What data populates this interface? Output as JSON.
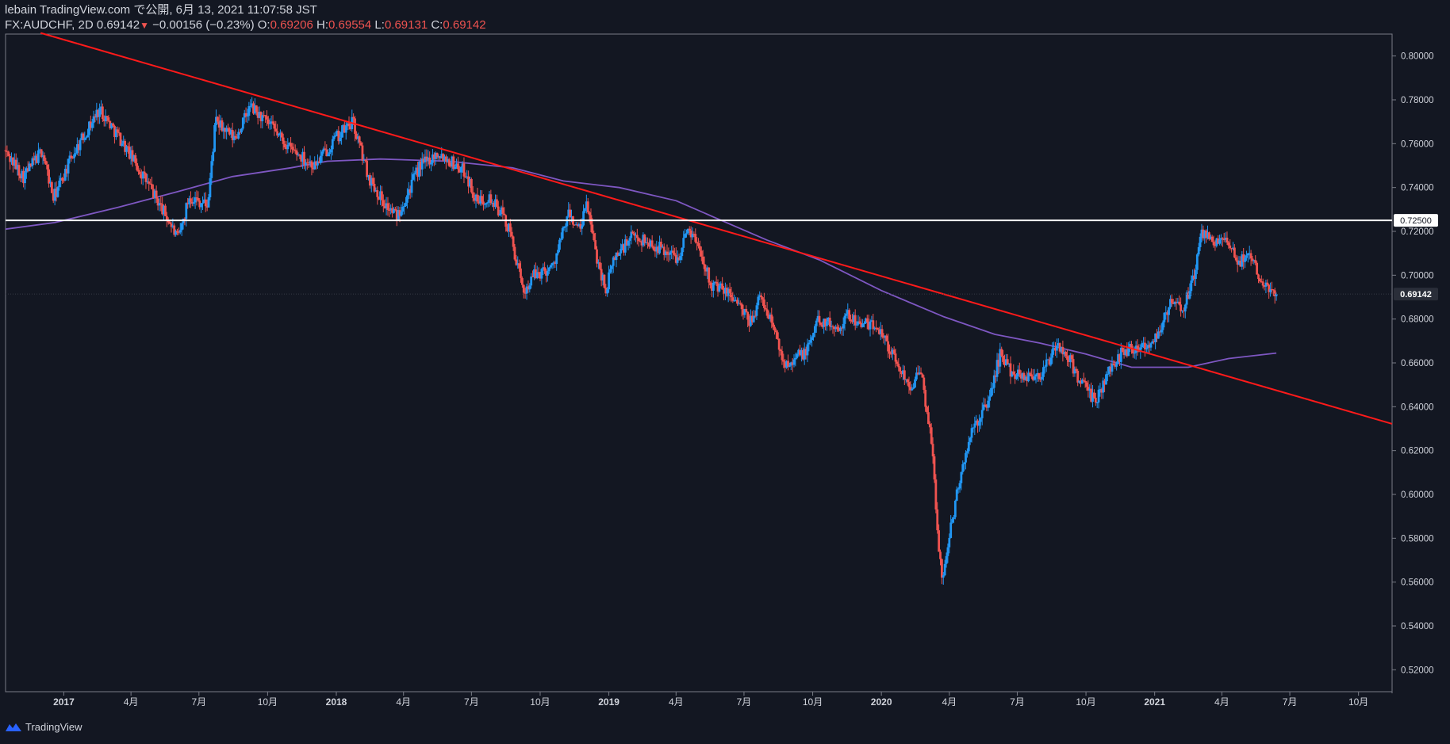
{
  "header": {
    "publish_line": "lebain TradingView.com で公開, 6月 13, 2021 11:07:58 JST",
    "symbol": "FX:AUDCHF, 2D",
    "last": "0.69142",
    "change": "−0.00156 (−0.23%)",
    "o_label": "O:",
    "o_value": "0.69206",
    "h_label": "H:",
    "h_value": "0.69554",
    "l_label": "L:",
    "l_value": "0.69131",
    "c_label": "C:",
    "c_value": "0.69142"
  },
  "footer": {
    "brand": "TradingView"
  },
  "colors": {
    "background": "#131722",
    "up": "#2196f3",
    "down": "#ef5350",
    "trendline": "#ff1a1a",
    "ma": "#7e57c2",
    "level": "#ffffff",
    "text": "#d1d4dc"
  },
  "chart_data": {
    "type": "candlestick",
    "symbol": "FX:AUDCHF",
    "timeframe": "2D",
    "ylim": [
      0.51,
      0.81
    ],
    "y_ticks": [
      0.52,
      0.54,
      0.56,
      0.58,
      0.6,
      0.62,
      0.64,
      0.66,
      0.68,
      0.7,
      0.72,
      0.74,
      0.76,
      0.78,
      0.8
    ],
    "y_tick_labels": [
      "0.52000",
      "0.54000",
      "0.56000",
      "0.58000",
      "0.60000",
      "0.62000",
      "0.64000",
      "0.66000",
      "0.68000",
      "0.70000",
      "0.72000",
      "0.74000",
      "0.76000",
      "0.78000",
      "0.80000"
    ],
    "xlim": [
      "2016-10-15",
      "2021-11-15"
    ],
    "x_ticks": [
      "2017-01-01",
      "2017-04-01",
      "2017-07-01",
      "2017-10-01",
      "2018-01-01",
      "2018-04-01",
      "2018-07-01",
      "2018-10-01",
      "2019-01-01",
      "2019-04-01",
      "2019-07-01",
      "2019-10-01",
      "2020-01-01",
      "2020-04-01",
      "2020-07-01",
      "2020-10-01",
      "2021-01-01",
      "2021-04-01",
      "2021-07-01",
      "2021-10-01"
    ],
    "x_tick_labels": [
      "2017",
      "4月",
      "7月",
      "10月",
      "2018",
      "4月",
      "7月",
      "10月",
      "2019",
      "4月",
      "7月",
      "10月",
      "2020",
      "4月",
      "7月",
      "10月",
      "2021",
      "4月",
      "7月",
      "10月"
    ],
    "price_path": [
      {
        "date": "2016-10-15",
        "close": 0.757
      },
      {
        "date": "2016-11-10",
        "close": 0.745
      },
      {
        "date": "2016-12-05",
        "close": 0.757
      },
      {
        "date": "2016-12-20",
        "close": 0.735
      },
      {
        "date": "2017-01-15",
        "close": 0.755
      },
      {
        "date": "2017-02-20",
        "close": 0.776
      },
      {
        "date": "2017-03-20",
        "close": 0.762
      },
      {
        "date": "2017-04-25",
        "close": 0.742
      },
      {
        "date": "2017-05-25",
        "close": 0.724
      },
      {
        "date": "2017-06-05",
        "close": 0.716
      },
      {
        "date": "2017-06-20",
        "close": 0.736
      },
      {
        "date": "2017-07-15",
        "close": 0.732
      },
      {
        "date": "2017-07-25",
        "close": 0.77
      },
      {
        "date": "2017-08-20",
        "close": 0.762
      },
      {
        "date": "2017-09-10",
        "close": 0.777
      },
      {
        "date": "2017-10-15",
        "close": 0.765
      },
      {
        "date": "2017-11-01",
        "close": 0.758
      },
      {
        "date": "2017-12-05",
        "close": 0.75
      },
      {
        "date": "2018-01-01",
        "close": 0.762
      },
      {
        "date": "2018-01-25",
        "close": 0.77
      },
      {
        "date": "2018-02-15",
        "close": 0.745
      },
      {
        "date": "2018-03-10",
        "close": 0.732
      },
      {
        "date": "2018-03-25",
        "close": 0.727
      },
      {
        "date": "2018-04-25",
        "close": 0.75
      },
      {
        "date": "2018-05-20",
        "close": 0.756
      },
      {
        "date": "2018-06-25",
        "close": 0.747
      },
      {
        "date": "2018-07-10",
        "close": 0.733
      },
      {
        "date": "2018-07-25",
        "close": 0.736
      },
      {
        "date": "2018-08-15",
        "close": 0.727
      },
      {
        "date": "2018-08-25",
        "close": 0.718
      },
      {
        "date": "2018-09-10",
        "close": 0.692
      },
      {
        "date": "2018-09-25",
        "close": 0.7
      },
      {
        "date": "2018-10-20",
        "close": 0.704
      },
      {
        "date": "2018-11-10",
        "close": 0.728
      },
      {
        "date": "2018-11-25",
        "close": 0.72
      },
      {
        "date": "2018-12-05",
        "close": 0.733
      },
      {
        "date": "2018-12-15",
        "close": 0.712
      },
      {
        "date": "2018-12-30",
        "close": 0.693
      },
      {
        "date": "2019-01-10",
        "close": 0.708
      },
      {
        "date": "2019-02-05",
        "close": 0.718
      },
      {
        "date": "2019-03-15",
        "close": 0.712
      },
      {
        "date": "2019-04-05",
        "close": 0.708
      },
      {
        "date": "2019-04-20",
        "close": 0.722
      },
      {
        "date": "2019-05-05",
        "close": 0.712
      },
      {
        "date": "2019-05-20",
        "close": 0.696
      },
      {
        "date": "2019-06-20",
        "close": 0.69
      },
      {
        "date": "2019-07-10",
        "close": 0.678
      },
      {
        "date": "2019-07-25",
        "close": 0.69
      },
      {
        "date": "2019-08-10",
        "close": 0.678
      },
      {
        "date": "2019-08-25",
        "close": 0.66
      },
      {
        "date": "2019-09-25",
        "close": 0.665
      },
      {
        "date": "2019-10-10",
        "close": 0.68
      },
      {
        "date": "2019-11-05",
        "close": 0.676
      },
      {
        "date": "2019-11-20",
        "close": 0.682
      },
      {
        "date": "2019-12-05",
        "close": 0.678
      },
      {
        "date": "2020-01-01",
        "close": 0.676
      },
      {
        "date": "2020-01-20",
        "close": 0.662
      },
      {
        "date": "2020-02-10",
        "close": 0.65
      },
      {
        "date": "2020-02-25",
        "close": 0.655
      },
      {
        "date": "2020-03-10",
        "close": 0.625
      },
      {
        "date": "2020-03-18",
        "close": 0.585
      },
      {
        "date": "2020-03-24",
        "close": 0.56
      },
      {
        "date": "2020-04-05",
        "close": 0.585
      },
      {
        "date": "2020-04-20",
        "close": 0.612
      },
      {
        "date": "2020-05-05",
        "close": 0.63
      },
      {
        "date": "2020-05-25",
        "close": 0.642
      },
      {
        "date": "2020-06-10",
        "close": 0.664
      },
      {
        "date": "2020-06-25",
        "close": 0.656
      },
      {
        "date": "2020-07-15",
        "close": 0.654
      },
      {
        "date": "2020-08-05",
        "close": 0.655
      },
      {
        "date": "2020-08-25",
        "close": 0.668
      },
      {
        "date": "2020-09-10",
        "close": 0.662
      },
      {
        "date": "2020-09-25",
        "close": 0.652
      },
      {
        "date": "2020-10-15",
        "close": 0.642
      },
      {
        "date": "2020-11-01",
        "close": 0.655
      },
      {
        "date": "2020-11-20",
        "close": 0.665
      },
      {
        "date": "2020-12-10",
        "close": 0.668
      },
      {
        "date": "2020-12-25",
        "close": 0.668
      },
      {
        "date": "2021-01-10",
        "close": 0.675
      },
      {
        "date": "2021-01-25",
        "close": 0.688
      },
      {
        "date": "2021-02-10",
        "close": 0.684
      },
      {
        "date": "2021-02-25",
        "close": 0.7
      },
      {
        "date": "2021-03-05",
        "close": 0.718
      },
      {
        "date": "2021-03-25",
        "close": 0.716
      },
      {
        "date": "2021-04-10",
        "close": 0.714
      },
      {
        "date": "2021-04-25",
        "close": 0.706
      },
      {
        "date": "2021-05-10",
        "close": 0.71
      },
      {
        "date": "2021-05-25",
        "close": 0.699
      },
      {
        "date": "2021-06-13",
        "close": 0.69142
      }
    ],
    "moving_average": [
      {
        "date": "2016-10-15",
        "value": 0.721
      },
      {
        "date": "2016-12-20",
        "value": 0.724
      },
      {
        "date": "2017-03-15",
        "value": 0.731
      },
      {
        "date": "2017-06-01",
        "value": 0.738
      },
      {
        "date": "2017-08-15",
        "value": 0.745
      },
      {
        "date": "2017-11-01",
        "value": 0.749
      },
      {
        "date": "2017-12-20",
        "value": 0.752
      },
      {
        "date": "2018-03-01",
        "value": 0.753
      },
      {
        "date": "2018-06-01",
        "value": 0.752
      },
      {
        "date": "2018-08-25",
        "value": 0.749
      },
      {
        "date": "2018-11-01",
        "value": 0.743
      },
      {
        "date": "2019-01-15",
        "value": 0.74
      },
      {
        "date": "2019-04-01",
        "value": 0.734
      },
      {
        "date": "2019-05-25",
        "value": 0.726
      },
      {
        "date": "2019-08-01",
        "value": 0.716
      },
      {
        "date": "2019-10-10",
        "value": 0.707
      },
      {
        "date": "2020-01-01",
        "value": 0.693
      },
      {
        "date": "2020-03-25",
        "value": 0.681
      },
      {
        "date": "2020-06-01",
        "value": 0.673
      },
      {
        "date": "2020-08-01",
        "value": 0.669
      },
      {
        "date": "2020-10-01",
        "value": 0.664
      },
      {
        "date": "2020-12-01",
        "value": 0.658
      },
      {
        "date": "2021-02-15",
        "value": 0.658
      },
      {
        "date": "2021-04-10",
        "value": 0.662
      },
      {
        "date": "2021-06-13",
        "value": 0.6645
      }
    ],
    "trendline": {
      "start": {
        "date": "2016-12-01",
        "value": 0.8105
      },
      "end": {
        "date": "2021-11-15",
        "value": 0.6322
      }
    },
    "horizontal_level": {
      "value": 0.725,
      "label": "0.72500"
    },
    "last_price": {
      "value": 0.69142,
      "label": "0.69142"
    }
  }
}
